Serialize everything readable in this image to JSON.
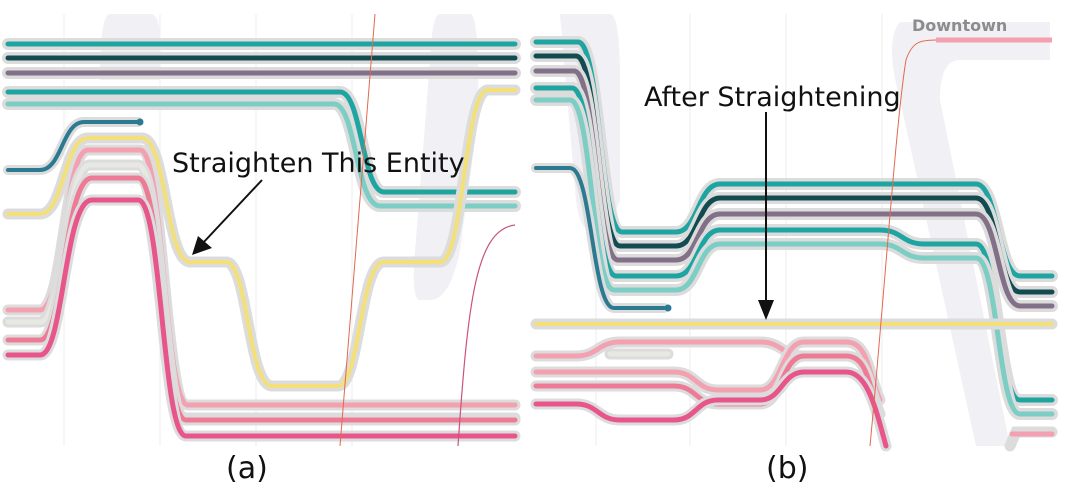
{
  "figure": {
    "panels": [
      {
        "id": "a",
        "caption": "(a)",
        "annotation": "Straighten This Entity",
        "location_label": ""
      },
      {
        "id": "b",
        "caption": "(b)",
        "annotation": "After Straightening",
        "location_label": "Downtown"
      }
    ],
    "colors": {
      "teal": "#1fa5a1",
      "dark_teal": "#124c50",
      "purple": "#826f88",
      "light_teal": "#7ccdc3",
      "blue": "#2b7a92",
      "yellow": "#f3e079",
      "pink_light": "#f3a1b1",
      "pink_mid": "#ee7b96",
      "pink_hot": "#e7558a",
      "gray_line": "#e0e0e0",
      "halo": "#dcdcdc",
      "background_region": "#f1f1f5",
      "red_thin": "#e2694f"
    }
  }
}
